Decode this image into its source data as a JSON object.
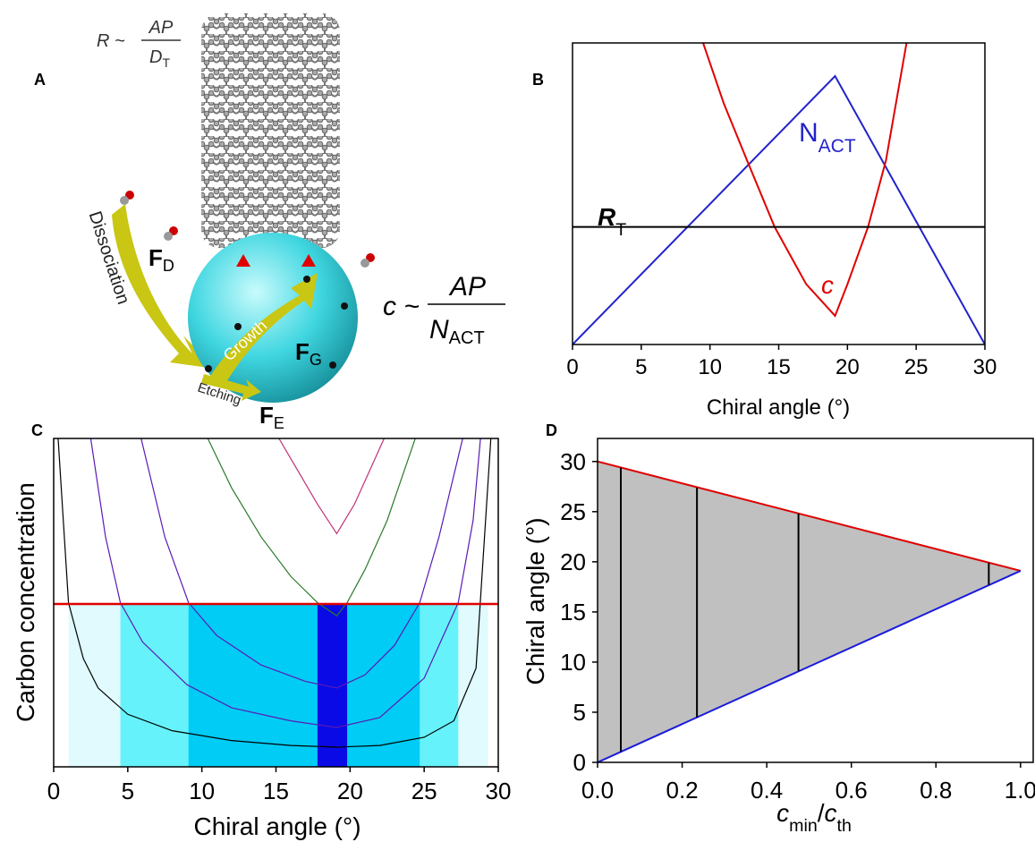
{
  "panel_a": {
    "label": "A",
    "r_relation": {
      "lhs": "R ~",
      "numerator": "AP",
      "denominator": "D",
      "denominator_sub": "T"
    },
    "dissociation": "Dissociation",
    "growth": "Growth",
    "etching": "Etching",
    "f_d": {
      "symbol": "F",
      "sub": "D"
    },
    "f_g": {
      "symbol": "F",
      "sub": "G"
    },
    "f_e": {
      "symbol": "F",
      "sub": "E"
    },
    "c_relation": {
      "lhs": "c ~",
      "numerator": "AP",
      "denominator": "N",
      "denominator_sub": "ACT"
    }
  },
  "chart_data": [
    {
      "type": "line",
      "panel_label": "B",
      "xlabel": "Chiral angle (°)",
      "xlim": [
        0,
        30
      ],
      "xticks": [
        0,
        5,
        10,
        15,
        20,
        25,
        30
      ],
      "ylim": [
        0,
        1
      ],
      "series": [
        {
          "name": "N",
          "name_sub": "ACT",
          "color": "#2222cc",
          "x": [
            0,
            19.1,
            30
          ],
          "values": [
            0,
            0.89,
            0
          ]
        },
        {
          "name": "c",
          "color": "#e00000",
          "x": [
            9.5,
            11,
            12.7,
            14.7,
            17,
            19.1,
            20,
            21.5,
            22.8,
            24.3
          ],
          "values": [
            1.0,
            0.8,
            0.61,
            0.39,
            0.2,
            0.095,
            0.2,
            0.39,
            0.61,
            1.0
          ]
        },
        {
          "name": "R",
          "name_sub": "T",
          "color": "#000000",
          "x": [
            0,
            30
          ],
          "values": [
            0.39,
            0.39
          ]
        }
      ]
    },
    {
      "type": "line",
      "panel_label": "C",
      "xlabel": "Chiral angle (°)",
      "ylabel": "Carbon concentration",
      "xlim": [
        0,
        30
      ],
      "xticks": [
        0,
        5,
        10,
        15,
        20,
        25,
        30
      ],
      "ylim": [
        0,
        1
      ],
      "threshold": {
        "value": 0.496,
        "color": "#e00000"
      },
      "bands": [
        {
          "x0": 1.0,
          "x1": 29.3,
          "color": "#e0fafd"
        },
        {
          "x0": 4.5,
          "x1": 27.3,
          "color": "#66f2fb"
        },
        {
          "x0": 9.1,
          "x1": 24.7,
          "color": "#00ccf5"
        },
        {
          "x0": 17.8,
          "x1": 19.8,
          "color": "#0a0ae6"
        }
      ],
      "series": [
        {
          "color": "#000000",
          "x": [
            0.3,
            1,
            2,
            3,
            5,
            8,
            12,
            16,
            19.1,
            22,
            25,
            27,
            28.5,
            29.5
          ],
          "values": [
            1.0,
            0.5,
            0.33,
            0.24,
            0.16,
            0.11,
            0.08,
            0.065,
            0.06,
            0.065,
            0.09,
            0.14,
            0.3,
            1.0
          ]
        },
        {
          "color": "#5a1ab4",
          "x": [
            2.5,
            3.5,
            4.5,
            6,
            9,
            12,
            16,
            19.1,
            22,
            25,
            27.3,
            28.3,
            28.8
          ],
          "values": [
            1.0,
            0.7,
            0.5,
            0.38,
            0.25,
            0.18,
            0.14,
            0.12,
            0.15,
            0.27,
            0.5,
            0.75,
            1.0
          ]
        },
        {
          "color": "#5a1ab4",
          "x": [
            5.9,
            7.5,
            9.1,
            11,
            14,
            17,
            19.1,
            21,
            23,
            24.7,
            26,
            27.6
          ],
          "values": [
            1.0,
            0.7,
            0.5,
            0.4,
            0.31,
            0.26,
            0.24,
            0.28,
            0.37,
            0.5,
            0.7,
            1.0
          ]
        },
        {
          "color": "#2a7a2a",
          "x": [
            10.4,
            12,
            14,
            16,
            17.8,
            19.1,
            19.8,
            21,
            22.5,
            24.4
          ],
          "values": [
            1.0,
            0.85,
            0.7,
            0.58,
            0.5,
            0.46,
            0.5,
            0.6,
            0.75,
            1.0
          ]
        },
        {
          "color": "#c0307a",
          "x": [
            15.2,
            16.5,
            17.8,
            19.1,
            20.3,
            21.3,
            22.3
          ],
          "values": [
            1.0,
            0.9,
            0.8,
            0.71,
            0.8,
            0.9,
            1.0
          ]
        }
      ]
    },
    {
      "type": "area",
      "panel_label": "D",
      "xlabel": {
        "c1": "c",
        "sub1": "min",
        "slash": "/",
        "c2": "c",
        "sub2": "th"
      },
      "ylabel": "Chiral angle (°)",
      "xlim": [
        0,
        1.03
      ],
      "xticks": [
        {
          "value": 0,
          "label": "0.0"
        },
        {
          "value": 0.2,
          "label": "0.2"
        },
        {
          "value": 0.4,
          "label": "0.4"
        },
        {
          "value": 0.6,
          "label": "0.6"
        },
        {
          "value": 0.8,
          "label": "0.8"
        },
        {
          "value": 1,
          "label": "1.0"
        }
      ],
      "ylim": [
        0,
        32.3
      ],
      "yticks": [
        0,
        5,
        10,
        15,
        20,
        25,
        30
      ],
      "fill_color": "#c0c0c0",
      "series": [
        {
          "color": "#e00000",
          "x": [
            0,
            1
          ],
          "values": [
            30,
            19.1
          ]
        },
        {
          "color": "#1a1ae0",
          "x": [
            0,
            1
          ],
          "values": [
            0,
            19.1
          ]
        }
      ],
      "segments": [
        {
          "x": 0.055,
          "values": [
            1.05,
            29.4
          ]
        },
        {
          "x": 0.235,
          "values": [
            4.5,
            27.4
          ]
        },
        {
          "x": 0.475,
          "values": [
            9.1,
            24.8
          ]
        },
        {
          "x": 0.925,
          "values": [
            17.7,
            19.9
          ]
        }
      ]
    }
  ]
}
